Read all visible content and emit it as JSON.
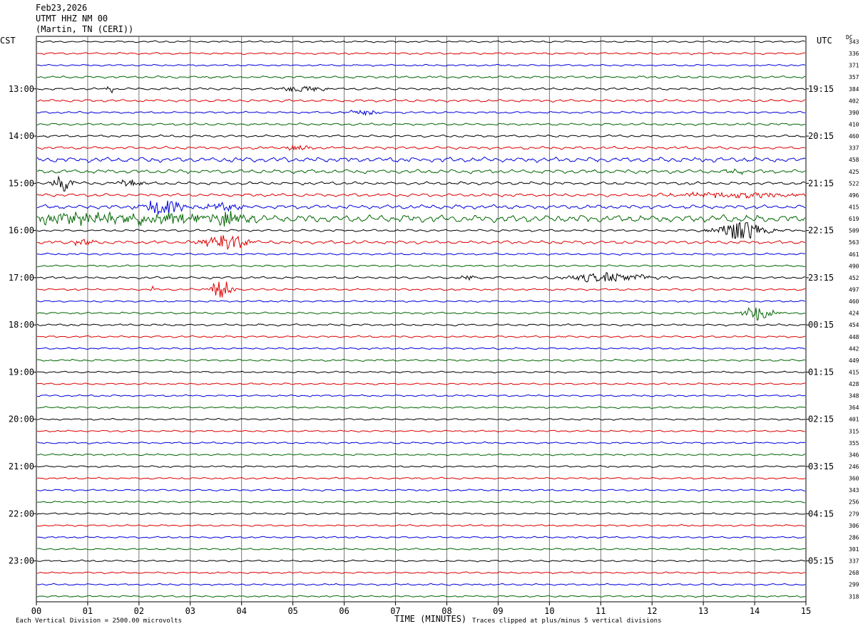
{
  "header": {
    "date": "Feb23,2026",
    "station": "UTMT HHZ NM 00",
    "location": "(Martin, TN (CERI))"
  },
  "labels": {
    "left_tz": "CST",
    "right_tz": "UTC",
    "dc": "DC",
    "x_title": "TIME (MINUTES)",
    "scale_note": "Each Vertical Division = 2500.00 microvolts",
    "clip_note": "Traces clipped at plus/minus 5 vertical divisions"
  },
  "chart_data": {
    "type": "line",
    "title": "",
    "xlabel": "TIME (MINUTES)",
    "xlim": [
      0,
      15
    ],
    "x_ticks": [
      "00",
      "01",
      "02",
      "03",
      "04",
      "05",
      "06",
      "07",
      "08",
      "09",
      "10",
      "11",
      "12",
      "13",
      "14",
      "15"
    ],
    "trace_colors": [
      "#000000",
      "#dd0000",
      "#0000dd",
      "#006600"
    ],
    "left_hour_labels": [
      "13:00",
      "14:00",
      "15:00",
      "16:00",
      "17:00",
      "18:00",
      "19:00",
      "20:00",
      "21:00",
      "22:00",
      "23:00"
    ],
    "right_hour_labels": [
      "19:15",
      "20:15",
      "21:15",
      "22:15",
      "23:15",
      "00:15",
      "01:15",
      "02:15",
      "03:15",
      "04:15",
      "05:15"
    ],
    "hour_label_start_trace": 4,
    "dc_offsets": [
      343,
      336,
      371,
      357,
      384,
      402,
      390,
      410,
      460,
      337,
      458,
      425,
      522,
      496,
      415,
      619,
      509,
      563,
      461,
      490,
      452,
      497,
      460,
      424,
      454,
      448,
      442,
      449,
      415,
      428,
      348,
      364,
      401,
      315,
      355,
      346,
      246,
      360,
      343,
      256,
      279,
      306,
      286,
      301,
      337,
      268,
      299,
      318
    ],
    "noise_levels": [
      0.7,
      0.8,
      0.7,
      0.9,
      0.9,
      1.0,
      0.8,
      0.9,
      0.9,
      1.1,
      1.9,
      1.5,
      1.2,
      1.2,
      1.6,
      2.8,
      0.9,
      1.3,
      0.8,
      0.8,
      0.9,
      0.8,
      0.7,
      0.8,
      0.8,
      0.8,
      0.7,
      0.8,
      0.7,
      0.7,
      0.7,
      0.7,
      0.7,
      0.7,
      0.7,
      0.7,
      0.7,
      0.7,
      0.7,
      0.7,
      0.7,
      0.7,
      0.7,
      0.7,
      0.7,
      0.7,
      0.7,
      0.7
    ],
    "events": [
      {
        "trace": 4,
        "minute": 5.2,
        "amplitude": 3,
        "width_min": 0.5
      },
      {
        "trace": 4,
        "minute": 1.45,
        "amplitude": 4,
        "width_min": 0.1
      },
      {
        "trace": 6,
        "minute": 6.4,
        "amplitude": 2.5,
        "width_min": 0.4
      },
      {
        "trace": 9,
        "minute": 5.1,
        "amplitude": 3,
        "width_min": 0.3
      },
      {
        "trace": 11,
        "minute": 13.6,
        "amplitude": 4,
        "width_min": 0.2
      },
      {
        "trace": 12,
        "minute": 0.5,
        "amplitude": 9,
        "width_min": 0.25
      },
      {
        "trace": 12,
        "minute": 1.8,
        "amplitude": 4,
        "width_min": 0.3
      },
      {
        "trace": 13,
        "minute": 13.5,
        "amplitude": 3,
        "width_min": 1.5
      },
      {
        "trace": 14,
        "minute": 2.5,
        "amplitude": 9,
        "width_min": 0.5
      },
      {
        "trace": 14,
        "minute": 3.6,
        "amplitude": 4,
        "width_min": 0.5
      },
      {
        "trace": 15,
        "minute": 1.5,
        "amplitude": 6,
        "width_min": 2.5
      },
      {
        "trace": 15,
        "minute": 3.6,
        "amplitude": 7,
        "width_min": 0.6
      },
      {
        "trace": 16,
        "minute": 13.75,
        "amplitude": 11,
        "width_min": 0.6
      },
      {
        "trace": 17,
        "minute": 3.7,
        "amplitude": 9,
        "width_min": 0.5
      },
      {
        "trace": 17,
        "minute": 0.9,
        "amplitude": 3,
        "width_min": 0.3
      },
      {
        "trace": 20,
        "minute": 11.2,
        "amplitude": 5,
        "width_min": 1.0
      },
      {
        "trace": 20,
        "minute": 8.4,
        "amplitude": 2.5,
        "width_min": 0.2
      },
      {
        "trace": 21,
        "minute": 3.6,
        "amplitude": 11,
        "width_min": 0.25
      },
      {
        "trace": 21,
        "minute": 2.25,
        "amplitude": 5,
        "width_min": 0.05
      },
      {
        "trace": 23,
        "minute": 14.1,
        "amplitude": 9,
        "width_min": 0.35
      }
    ]
  }
}
